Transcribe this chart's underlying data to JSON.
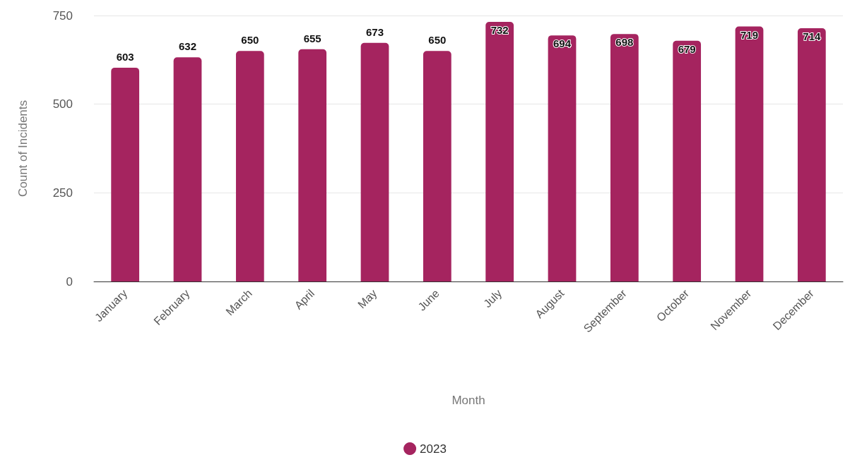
{
  "chart_data": {
    "type": "bar",
    "xlabel": "Month",
    "ylabel": "Count of Incidents",
    "categories": [
      "January",
      "February",
      "March",
      "April",
      "May",
      "June",
      "July",
      "August",
      "September",
      "October",
      "November",
      "December"
    ],
    "series": [
      {
        "name": "2023",
        "color": "#a5245f",
        "values": [
          603,
          632,
          650,
          655,
          673,
          650,
          732,
          694,
          698,
          679,
          719,
          714
        ]
      }
    ],
    "ylim": [
      0,
      750
    ],
    "yticks": [
      0,
      250,
      500,
      750
    ],
    "grid": "y",
    "legend": "bottom",
    "data_labels": true
  }
}
